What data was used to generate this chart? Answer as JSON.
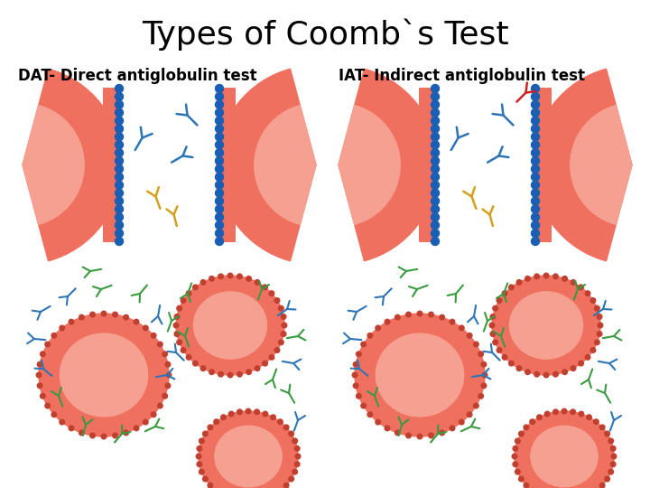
{
  "title": "Types of Coomb`s Test",
  "title_fontsize": 26,
  "label_dat": "DAT- Direct antiglobulin test",
  "label_iat": "IAT- Indirect antiglobulin test",
  "label_fontsize": 12,
  "bg_color": "#ffffff",
  "rbc_salmon": "#F07060",
  "rbc_inner": "#F5A090",
  "dot_color": "#1A5FB4",
  "ab_blue": "#2E75B6",
  "ab_green": "#3A9A40",
  "ab_gold": "#D4A020",
  "ab_red": "#CC2222",
  "panel_bg": "#ffffff"
}
